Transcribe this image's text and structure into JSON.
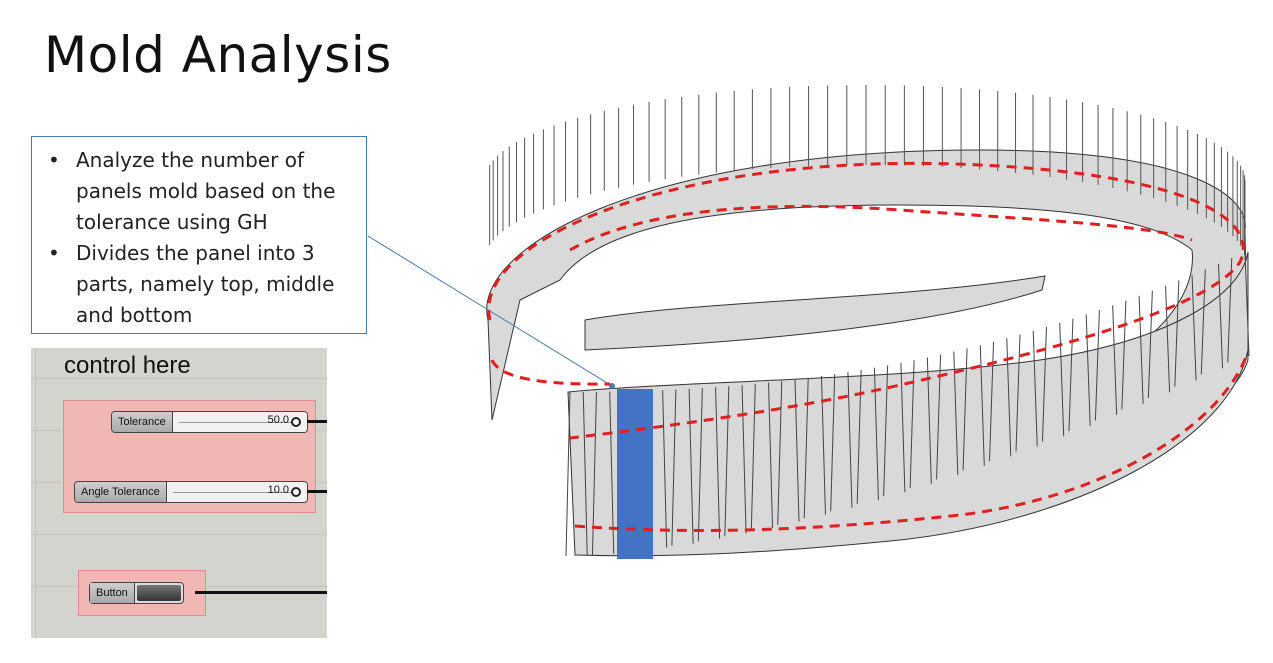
{
  "title": "Mold Analysis",
  "notes": [
    "Analyze the number of panels mold based on the tolerance using GH",
    "Divides the panel into 3 parts, namely top, middle and bottom"
  ],
  "gh": {
    "label": "control here",
    "sliders": [
      {
        "name": "Tolerance",
        "value": "50.0",
        "fraction": 0.5
      },
      {
        "name": "Angle Tolerance",
        "value": "10.0",
        "fraction": 0.95
      }
    ],
    "button": {
      "label": "Button"
    }
  },
  "colors": {
    "panel_fill": "#d9d9d9",
    "highlight_panel": "#4472c4",
    "dashed_line": "#e02020",
    "leader_line": "#4a7aa5"
  }
}
